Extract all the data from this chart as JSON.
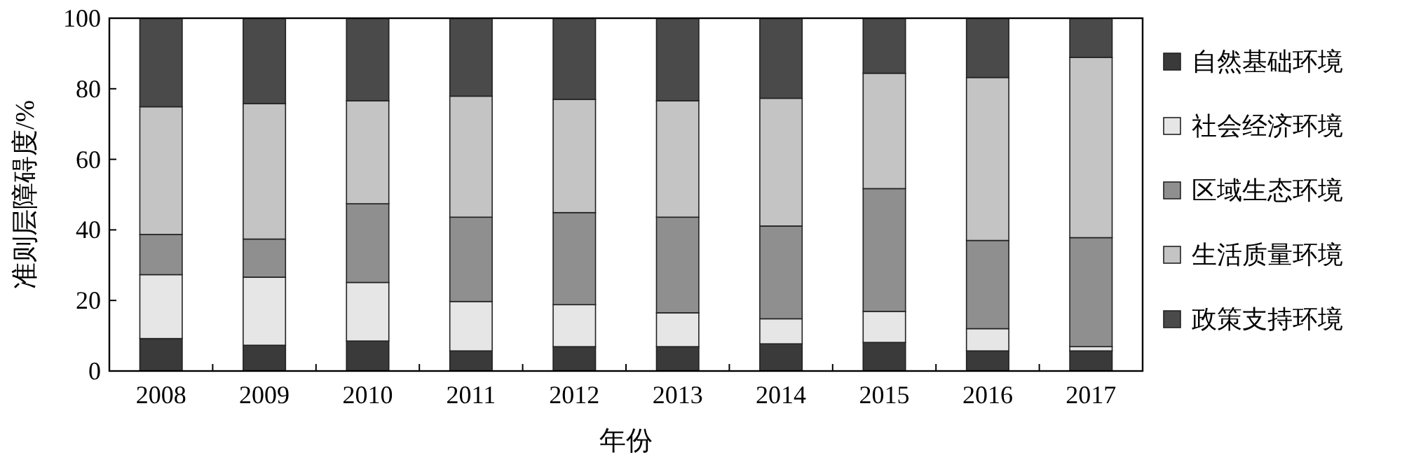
{
  "chart_data": {
    "type": "bar",
    "stacked": true,
    "xlabel": "年份",
    "ylabel": "准则层障碍度/%",
    "categories": [
      "2008",
      "2009",
      "2010",
      "2011",
      "2012",
      "2013",
      "2014",
      "2015",
      "2016",
      "2017"
    ],
    "series": [
      {
        "name": "自然基础环境",
        "color": "#3a3a3a",
        "values": [
          9.2,
          7.3,
          8.5,
          5.7,
          6.9,
          6.9,
          7.7,
          8.1,
          5.7,
          5.7
        ]
      },
      {
        "name": "社会经济环境",
        "color": "#e6e6e6",
        "values": [
          18.1,
          19.3,
          16.6,
          14.0,
          11.9,
          9.6,
          7.1,
          8.8,
          6.3,
          1.2
        ]
      },
      {
        "name": "区域生态环境",
        "color": "#8f8f8f",
        "values": [
          11.4,
          10.8,
          22.3,
          23.9,
          26.1,
          27.1,
          26.3,
          34.8,
          25.0,
          30.9
        ]
      },
      {
        "name": "生活质量环境",
        "color": "#c4c4c4",
        "values": [
          36.2,
          38.4,
          29.2,
          34.3,
          32.1,
          33.0,
          36.2,
          32.7,
          46.2,
          51.1
        ]
      },
      {
        "name": "政策支持环境",
        "color": "#4a4a4a",
        "values": [
          25.1,
          24.2,
          23.4,
          22.1,
          23.0,
          23.4,
          22.7,
          15.6,
          16.8,
          11.1
        ]
      }
    ],
    "ylim": [
      0,
      100
    ],
    "yticks": [
      0,
      20,
      40,
      60,
      80,
      100
    ],
    "legend": "right"
  }
}
